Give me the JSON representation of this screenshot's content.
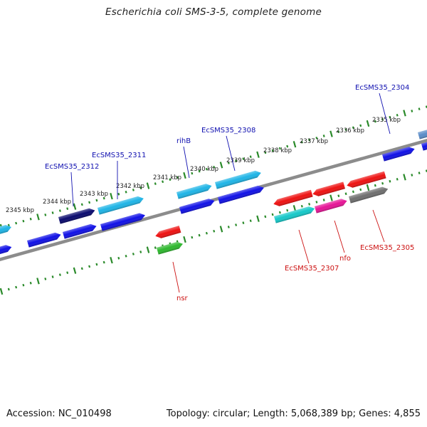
{
  "title": "Escherichia coli SMS-3-5, complete genome",
  "footer": {
    "accession": "Accession: NC_010498",
    "stats": "Topology: circular; Length: 5,068,389 bp; Genes: 4,855"
  },
  "ticks": [
    "2345 kbp",
    "2344 kbp",
    "2343 kbp",
    "2342 kbp",
    "2341 kbp",
    "2340 kbp",
    "2339 kbp",
    "2338 kbp",
    "2337 kbp",
    "2336 kbp",
    "2335 kbp"
  ],
  "genes_top": [
    {
      "label": "EcSMS35_2312",
      "color": "#0a0a6e"
    },
    {
      "label": "EcSMS35_2311",
      "color": "#1eb4e6"
    },
    {
      "label": "rihB",
      "color": "#1eb4e6"
    },
    {
      "label": "EcSMS35_2308",
      "color": "#1eb4e6"
    },
    {
      "label": "EcSMS35_2304",
      "color": "#5a8cc8"
    }
  ],
  "genes_bottom": [
    {
      "label": "nsr",
      "color": "#ee1111"
    },
    {
      "label": "EcSMS35_2307",
      "color": "#ee1111"
    },
    {
      "label": "nfo",
      "color": "#ee1111"
    },
    {
      "label": "EcSMS35_2305",
      "color": "#ee1111"
    }
  ],
  "colors": {
    "backbone": "#8c8c8c",
    "tick_track": "#2a8a2a",
    "blue_cds": "#1010e6",
    "cyan_cds": "#1eb4e6",
    "navy_cds": "#0a0a6e",
    "red_cds": "#ee1111",
    "teal_cds": "#14c8c8",
    "magenta_cds": "#e61496",
    "green_cds": "#2eb82e",
    "gray_cds": "#6e6e6e"
  }
}
